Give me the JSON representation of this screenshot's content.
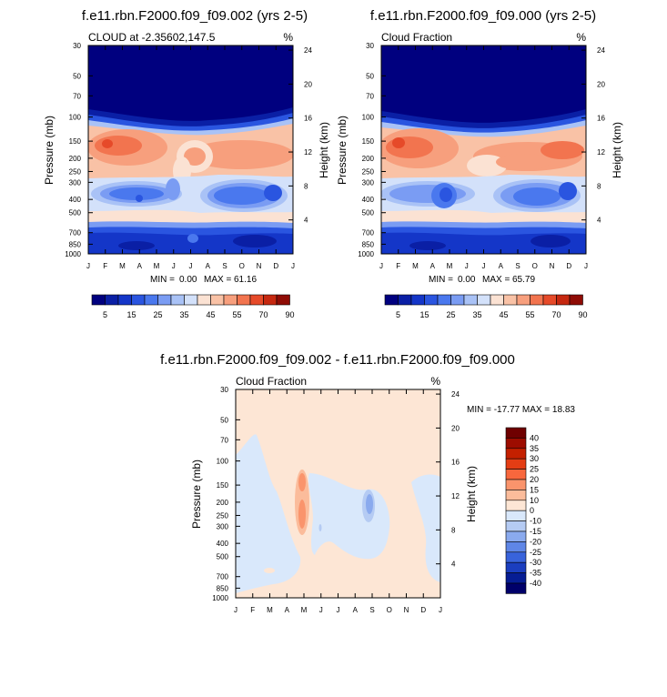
{
  "chart_data": [
    {
      "type": "heatmap",
      "title": "f.e11.rbn.F2000.f09_f09.002 (yrs 2-5)",
      "left_label": "CLOUD at -2.35602,147.5",
      "units": "%",
      "ylabel": "Pressure (mb)",
      "ylabel_right": "Height (km)",
      "months": [
        "J",
        "F",
        "M",
        "A",
        "M",
        "J",
        "J",
        "A",
        "S",
        "O",
        "N",
        "D",
        "J"
      ],
      "pressure_ticks": [
        "30",
        "50",
        "70",
        "100",
        "150",
        "200",
        "250",
        "300",
        "400",
        "500",
        "700",
        "850",
        "1000"
      ],
      "height_ticks": [
        "24",
        "20",
        "16",
        "12",
        "8",
        "4"
      ],
      "min_label": "MIN =",
      "min": "0.00",
      "max_label": "MAX =",
      "max": "61.16",
      "colorbar_labels": [
        "5",
        "15",
        "25",
        "35",
        "45",
        "55",
        "70",
        "90"
      ]
    },
    {
      "type": "heatmap",
      "title": "f.e11.rbn.F2000.f09_f09.000 (yrs 2-5)",
      "left_label": "Cloud Fraction",
      "units": "%",
      "ylabel": "Pressure (mb)",
      "ylabel_right": "Height (km)",
      "months": [
        "J",
        "F",
        "M",
        "A",
        "M",
        "J",
        "J",
        "A",
        "S",
        "O",
        "N",
        "D",
        "J"
      ],
      "pressure_ticks": [
        "30",
        "50",
        "70",
        "100",
        "150",
        "200",
        "250",
        "300",
        "400",
        "500",
        "700",
        "850",
        "1000"
      ],
      "height_ticks": [
        "24",
        "20",
        "16",
        "12",
        "8",
        "4"
      ],
      "min_label": "MIN =",
      "min": "0.00",
      "max_label": "MAX =",
      "max": "65.79",
      "colorbar_labels": [
        "5",
        "15",
        "25",
        "35",
        "45",
        "55",
        "70",
        "90"
      ]
    },
    {
      "type": "heatmap",
      "title": "f.e11.rbn.F2000.f09_f09.002 - f.e11.rbn.F2000.f09_f09.000",
      "left_label": "Cloud Fraction",
      "units": "%",
      "ylabel": "Pressure (mb)",
      "ylabel_right": "Height (km)",
      "months": [
        "J",
        "F",
        "M",
        "A",
        "M",
        "J",
        "J",
        "A",
        "S",
        "O",
        "N",
        "D",
        "J"
      ],
      "pressure_ticks": [
        "30",
        "50",
        "70",
        "100",
        "150",
        "200",
        "250",
        "300",
        "400",
        "500",
        "700",
        "850",
        "1000"
      ],
      "height_ticks": [
        "24",
        "20",
        "16",
        "12",
        "8",
        "4"
      ],
      "minmax_text": "MIN = -17.77 MAX =  18.83",
      "colorbar_labels": [
        "40",
        "35",
        "30",
        "25",
        "20",
        "15",
        "10",
        "0",
        "-10",
        "-15",
        "-20",
        "-25",
        "-30",
        "-35",
        "-40"
      ]
    }
  ],
  "palette": {
    "abs": [
      "#00007f",
      "#0a1fa5",
      "#1436c8",
      "#2a55e0",
      "#4a78ee",
      "#7a9cf3",
      "#a9c2f6",
      "#d3e1fa",
      "#fbe2d3",
      "#f9c2a6",
      "#f79f7d",
      "#f2744f",
      "#e64a29",
      "#c62810",
      "#8f0c05"
    ],
    "diff": [
      "#6f0000",
      "#9d0c00",
      "#c42000",
      "#e43d14",
      "#f8673d",
      "#fa946c",
      "#fbbc9b",
      "#fde6d5",
      "#d9e8fb",
      "#b5cbf3",
      "#8aaaee",
      "#5f86e6",
      "#3863db",
      "#1b3ebf",
      "#061d94",
      "#00006a"
    ]
  }
}
